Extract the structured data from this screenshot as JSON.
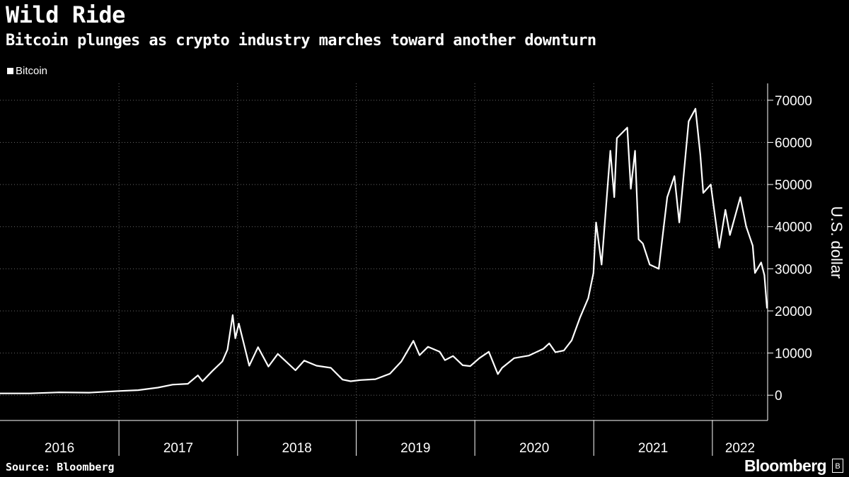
{
  "header": {
    "title": "Wild Ride",
    "subtitle": "Bitcoin plunges as crypto industry marches toward another downturn"
  },
  "footer": {
    "source": "Source: Bloomberg",
    "brand": "Bloomberg",
    "brand_icon": "bloomberg-logo-icon"
  },
  "colors": {
    "background": "#000000",
    "line": "#ffffff",
    "grid": "#666666"
  },
  "chart_data": {
    "type": "line",
    "title": "Wild Ride",
    "subtitle": "Bitcoin plunges as crypto industry marches toward another downturn",
    "ylabel": "U.S. dollar",
    "xlabel": "",
    "ylim": [
      -6000,
      74000
    ],
    "xlim": [
      "2016-01-01",
      "2022-06-20"
    ],
    "y_ticks": [
      0,
      10000,
      20000,
      30000,
      40000,
      50000,
      60000,
      70000
    ],
    "y_tick_labels": [
      "0",
      "10000",
      "20000",
      "30000",
      "40000",
      "50000",
      "60000",
      "70000"
    ],
    "x_tick_labels": [
      "2016",
      "2017",
      "2018",
      "2019",
      "2020",
      "2021",
      "2022"
    ],
    "grid": true,
    "legend_position": "top-left",
    "series": [
      {
        "name": "Bitcoin",
        "x": [
          "2016-01-01",
          "2016-04-01",
          "2016-07-01",
          "2016-10-01",
          "2017-01-01",
          "2017-03-01",
          "2017-05-01",
          "2017-06-15",
          "2017-08-01",
          "2017-09-01",
          "2017-09-15",
          "2017-10-15",
          "2017-11-15",
          "2017-12-01",
          "2017-12-17",
          "2017-12-25",
          "2018-01-05",
          "2018-02-06",
          "2018-03-05",
          "2018-04-06",
          "2018-05-05",
          "2018-06-28",
          "2018-07-25",
          "2018-09-01",
          "2018-10-15",
          "2018-11-20",
          "2018-12-15",
          "2019-01-15",
          "2019-03-01",
          "2019-04-15",
          "2019-05-20",
          "2019-06-26",
          "2019-07-15",
          "2019-08-10",
          "2019-09-15",
          "2019-10-01",
          "2019-10-26",
          "2019-11-25",
          "2019-12-18",
          "2020-01-15",
          "2020-02-13",
          "2020-03-12",
          "2020-03-25",
          "2020-05-01",
          "2020-06-15",
          "2020-07-30",
          "2020-08-17",
          "2020-09-05",
          "2020-10-01",
          "2020-10-25",
          "2020-11-20",
          "2020-12-15",
          "2020-12-31",
          "2021-01-08",
          "2021-01-25",
          "2021-02-21",
          "2021-03-05",
          "2021-03-13",
          "2021-04-14",
          "2021-04-25",
          "2021-05-08",
          "2021-05-19",
          "2021-06-01",
          "2021-06-22",
          "2021-07-20",
          "2021-08-15",
          "2021-09-06",
          "2021-09-21",
          "2021-10-20",
          "2021-11-10",
          "2021-11-25",
          "2021-12-04",
          "2021-12-27",
          "2022-01-22",
          "2022-02-10",
          "2022-02-24",
          "2022-03-28",
          "2022-04-15",
          "2022-05-05",
          "2022-05-12",
          "2022-05-31",
          "2022-06-10",
          "2022-06-18"
        ],
        "values": [
          430,
          430,
          670,
          610,
          1000,
          1200,
          1800,
          2500,
          2700,
          4700,
          3300,
          5700,
          8000,
          10800,
          19000,
          13500,
          17000,
          7000,
          11400,
          6800,
          9800,
          5900,
          8200,
          7000,
          6500,
          3700,
          3300,
          3600,
          3800,
          5100,
          8000,
          12900,
          9500,
          11500,
          10300,
          8300,
          9300,
          7100,
          6900,
          8800,
          10300,
          5000,
          6500,
          8800,
          9400,
          11000,
          12300,
          10200,
          10600,
          13000,
          18500,
          23000,
          29000,
          41000,
          31000,
          58000,
          47000,
          61000,
          63500,
          49000,
          58000,
          37000,
          36000,
          31000,
          30000,
          47000,
          52000,
          41000,
          65000,
          68000,
          57000,
          48000,
          50000,
          35000,
          44000,
          38000,
          47000,
          40000,
          35500,
          29000,
          31500,
          28500,
          20600
        ]
      }
    ]
  }
}
